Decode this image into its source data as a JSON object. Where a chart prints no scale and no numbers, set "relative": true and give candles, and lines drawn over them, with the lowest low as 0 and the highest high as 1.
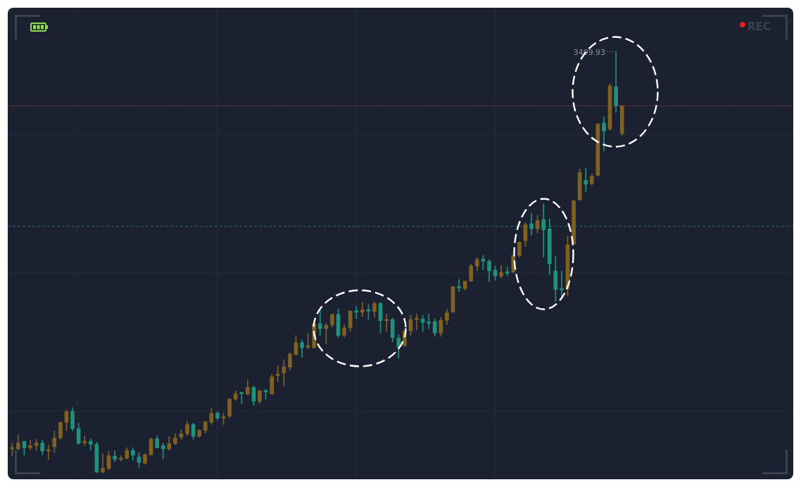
{
  "chart_data": {
    "type": "candlestick",
    "relative": true,
    "grid": true,
    "categories": [
      null,
      null,
      null,
      null,
      null,
      null,
      null,
      null,
      null,
      null,
      null,
      null,
      null,
      null,
      null,
      null,
      null,
      null,
      null,
      null,
      null,
      null,
      null,
      null,
      null,
      null,
      null,
      null,
      null,
      null,
      null,
      null,
      null,
      null,
      null,
      null,
      null,
      null,
      null,
      null,
      null,
      null,
      null,
      null,
      null,
      null,
      null,
      null,
      null,
      null,
      null,
      null,
      null,
      null,
      null,
      null,
      null,
      null,
      null,
      null,
      null,
      null,
      null,
      null,
      null,
      null,
      null,
      null,
      null,
      null,
      null,
      null,
      null,
      null,
      null,
      null,
      null,
      null,
      null,
      null,
      null,
      null,
      null,
      null,
      null,
      null,
      null,
      null,
      null,
      null,
      null,
      null,
      null,
      null,
      null,
      null,
      null,
      null,
      null,
      null,
      null,
      null
    ],
    "ohlc": [
      [
        0.057,
        0.071,
        0.04,
        0.058
      ],
      [
        0.057,
        0.09,
        0.055,
        0.071
      ],
      [
        0.075,
        0.075,
        0.042,
        0.06
      ],
      [
        0.06,
        0.078,
        0.055,
        0.065
      ],
      [
        0.065,
        0.08,
        0.054,
        0.071
      ],
      [
        0.071,
        0.078,
        0.043,
        0.052
      ],
      [
        0.052,
        0.066,
        0.032,
        0.053
      ],
      [
        0.062,
        0.1,
        0.048,
        0.083
      ],
      [
        0.083,
        0.121,
        0.08,
        0.12
      ],
      [
        0.12,
        0.15,
        0.1,
        0.145
      ],
      [
        0.146,
        0.155,
        0.1,
        0.105
      ],
      [
        0.105,
        0.118,
        0.068,
        0.07
      ],
      [
        0.071,
        0.088,
        0.065,
        0.075
      ],
      [
        0.075,
        0.081,
        0.054,
        0.068
      ],
      [
        0.068,
        0.073,
        0.0,
        0.002
      ],
      [
        0.002,
        0.046,
        0.0,
        0.011
      ],
      [
        0.011,
        0.052,
        0.007,
        0.041
      ],
      [
        0.04,
        0.053,
        0.027,
        0.032
      ],
      [
        0.032,
        0.041,
        0.028,
        0.035
      ],
      [
        0.035,
        0.06,
        0.033,
        0.053
      ],
      [
        0.053,
        0.06,
        0.03,
        0.042
      ],
      [
        0.038,
        0.048,
        0.013,
        0.025
      ],
      [
        0.023,
        0.046,
        0.02,
        0.043
      ],
      [
        0.043,
        0.083,
        0.042,
        0.08
      ],
      [
        0.081,
        0.088,
        0.059,
        0.06
      ],
      [
        0.065,
        0.071,
        0.033,
        0.057
      ],
      [
        0.057,
        0.086,
        0.054,
        0.07
      ],
      [
        0.07,
        0.093,
        0.067,
        0.083
      ],
      [
        0.085,
        0.103,
        0.079,
        0.093
      ],
      [
        0.093,
        0.123,
        0.089,
        0.115
      ],
      [
        0.115,
        0.118,
        0.08,
        0.087
      ],
      [
        0.087,
        0.103,
        0.084,
        0.101
      ],
      [
        0.101,
        0.123,
        0.094,
        0.121
      ],
      [
        0.12,
        0.153,
        0.115,
        0.141
      ],
      [
        0.142,
        0.145,
        0.125,
        0.13
      ],
      [
        0.13,
        0.142,
        0.115,
        0.133
      ],
      [
        0.135,
        0.177,
        0.13,
        0.175
      ],
      [
        0.175,
        0.195,
        0.172,
        0.188
      ],
      [
        0.189,
        0.19,
        0.165,
        0.188
      ],
      [
        0.187,
        0.221,
        0.185,
        0.203
      ],
      [
        0.203,
        0.206,
        0.16,
        0.17
      ],
      [
        0.17,
        0.197,
        0.165,
        0.195
      ],
      [
        0.195,
        0.198,
        0.175,
        0.192
      ],
      [
        0.187,
        0.233,
        0.187,
        0.228
      ],
      [
        0.231,
        0.254,
        0.217,
        0.233
      ],
      [
        0.237,
        0.269,
        0.206,
        0.252
      ],
      [
        0.251,
        0.285,
        0.244,
        0.282
      ],
      [
        0.281,
        0.326,
        0.279,
        0.309
      ],
      [
        0.309,
        0.316,
        0.274,
        0.297
      ],
      [
        0.298,
        0.331,
        0.294,
        0.302
      ],
      [
        0.297,
        0.355,
        0.297,
        0.354
      ],
      [
        0.354,
        0.39,
        0.326,
        0.342
      ],
      [
        0.342,
        0.355,
        0.306,
        0.35
      ],
      [
        0.351,
        0.377,
        0.346,
        0.376
      ],
      [
        0.376,
        0.389,
        0.321,
        0.326
      ],
      [
        0.327,
        0.352,
        0.322,
        0.344
      ],
      [
        0.344,
        0.385,
        0.336,
        0.384
      ],
      [
        0.384,
        0.395,
        0.366,
        0.381
      ],
      [
        0.381,
        0.405,
        0.371,
        0.387
      ],
      [
        0.387,
        0.399,
        0.364,
        0.384
      ],
      [
        0.383,
        0.405,
        0.369,
        0.402
      ],
      [
        0.402,
        0.404,
        0.332,
        0.361
      ],
      [
        0.361,
        0.377,
        0.336,
        0.363
      ],
      [
        0.364,
        0.367,
        0.311,
        0.321
      ],
      [
        0.32,
        0.329,
        0.272,
        0.299
      ],
      [
        0.302,
        0.337,
        0.3,
        0.337
      ],
      [
        0.337,
        0.375,
        0.326,
        0.364
      ],
      [
        0.364,
        0.377,
        0.339,
        0.365
      ],
      [
        0.365,
        0.374,
        0.335,
        0.357
      ],
      [
        0.357,
        0.377,
        0.342,
        0.355
      ],
      [
        0.359,
        0.365,
        0.324,
        0.332
      ],
      [
        0.332,
        0.369,
        0.324,
        0.362
      ],
      [
        0.362,
        0.389,
        0.352,
        0.38
      ],
      [
        0.382,
        0.442,
        0.38,
        0.442
      ],
      [
        0.442,
        0.459,
        0.43,
        0.439
      ],
      [
        0.437,
        0.455,
        0.434,
        0.455
      ],
      [
        0.455,
        0.496,
        0.454,
        0.491
      ],
      [
        0.491,
        0.511,
        0.479,
        0.506
      ],
      [
        0.507,
        0.516,
        0.482,
        0.502
      ],
      [
        0.502,
        0.506,
        0.454,
        0.479
      ],
      [
        0.481,
        0.491,
        0.457,
        0.467
      ],
      [
        0.467,
        0.492,
        0.462,
        0.476
      ],
      [
        0.476,
        0.489,
        0.467,
        0.474
      ],
      [
        0.476,
        0.516,
        0.476,
        0.516
      ],
      [
        0.516,
        0.549,
        0.512,
        0.547
      ],
      [
        0.551,
        0.594,
        0.537,
        0.589
      ],
      [
        0.591,
        0.616,
        0.564,
        0.579
      ],
      [
        0.579,
        0.611,
        0.569,
        0.599
      ],
      [
        0.601,
        0.638,
        0.512,
        0.577
      ],
      [
        0.579,
        0.602,
        0.471,
        0.496
      ],
      [
        0.479,
        0.514,
        0.407,
        0.435
      ],
      [
        0.435,
        0.479,
        0.412,
        0.434
      ],
      [
        0.437,
        0.562,
        0.42,
        0.541
      ],
      [
        0.543,
        0.646,
        0.543,
        0.646
      ],
      [
        0.648,
        0.721,
        0.646,
        0.713
      ],
      [
        0.694,
        0.723,
        0.666,
        0.685
      ],
      [
        0.686,
        0.709,
        0.683,
        0.704
      ],
      [
        0.706,
        0.828,
        0.704,
        0.828
      ],
      [
        0.83,
        0.845,
        0.764,
        0.811
      ],
      [
        0.816,
        0.923,
        0.813,
        0.918
      ],
      [
        0.916,
        1.0,
        0.855,
        0.871
      ],
      [
        0.805,
        0.871,
        0.8,
        0.871
      ]
    ],
    "colors": [
      "#7f6122",
      "#7f6122",
      "#21907c",
      "#7f6122",
      "#7f6122",
      "#21907c",
      "#7f6122",
      "#7f6122",
      "#7f6122",
      "#7f6122",
      "#21907c",
      "#21907c",
      "#7f6122",
      "#21907c",
      "#21907c",
      "#7f6122",
      "#7f6122",
      "#21907c",
      "#7f6122",
      "#7f6122",
      "#21907c",
      "#21907c",
      "#7f6122",
      "#7f6122",
      "#21907c",
      "#21907c",
      "#7f6122",
      "#7f6122",
      "#7f6122",
      "#7f6122",
      "#21907c",
      "#7f6122",
      "#7f6122",
      "#7f6122",
      "#21907c",
      "#7f6122",
      "#7f6122",
      "#7f6122",
      "#21907c",
      "#7f6122",
      "#21907c",
      "#7f6122",
      "#21907c",
      "#7f6122",
      "#7f6122",
      "#7f6122",
      "#7f6122",
      "#7f6122",
      "#21907c",
      "#7f6122",
      "#7f6122",
      "#21907c",
      "#7f6122",
      "#7f6122",
      "#21907c",
      "#7f6122",
      "#7f6122",
      "#21907c",
      "#7f6122",
      "#21907c",
      "#7f6122",
      "#21907c",
      "#7f6122",
      "#21907c",
      "#21907c",
      "#7f6122",
      "#7f6122",
      "#7f6122",
      "#21907c",
      "#21907c",
      "#21907c",
      "#7f6122",
      "#7f6122",
      "#7f6122",
      "#21907c",
      "#7f6122",
      "#7f6122",
      "#7f6122",
      "#21907c",
      "#21907c",
      "#21907c",
      "#7f6122",
      "#21907c",
      "#7f6122",
      "#7f6122",
      "#7f6122",
      "#21907c",
      "#7f6122",
      "#21907c",
      "#21907c",
      "#21907c",
      "#21907c",
      "#7f6122",
      "#7f6122",
      "#7f6122",
      "#21907c",
      "#7f6122",
      "#7f6122",
      "#21907c",
      "#7f6122",
      "#21907c",
      "#7f6122"
    ],
    "ref_lines": [
      {
        "axis": "y",
        "value": 0.871,
        "color": "#9a4448",
        "line_style": "dotted"
      },
      {
        "axis": "y",
        "value": 0.585,
        "color": "#23706a",
        "line_style": "dashed"
      }
    ],
    "annotations": [
      "3499.93",
      "REC"
    ]
  }
}
